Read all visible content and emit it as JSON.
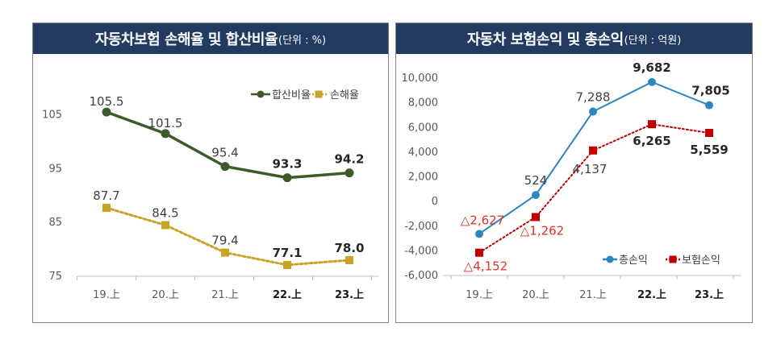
{
  "left_panel": {
    "title": "자동차보험 손해율 및 합산비율",
    "unit": "(단위 : %)"
  },
  "right_panel": {
    "title": "자동차 보험손익 및 총손익",
    "unit": "(단위 : 억원)"
  },
  "chart_data": [
    {
      "type": "line",
      "categories": [
        "19.上",
        "20.上",
        "21.上",
        "22.上",
        "23.上"
      ],
      "bold_categories": [
        "22.上",
        "23.上"
      ],
      "yticks": [
        75,
        85,
        95,
        105
      ],
      "ylim": [
        75,
        110
      ],
      "legend_position": "top-right",
      "series": [
        {
          "name": "합산비율",
          "color": "#3c5a2a",
          "style": "solid",
          "marker": "circle",
          "values": [
            105.5,
            101.5,
            95.4,
            93.3,
            94.2
          ],
          "labels": [
            "105.5",
            "101.5",
            "95.4",
            "93.3",
            "94.2"
          ],
          "label_position": "above"
        },
        {
          "name": "손해율",
          "color": "#c9a227",
          "style": "dotted",
          "marker": "square",
          "values": [
            87.7,
            84.5,
            79.4,
            77.1,
            78.0
          ],
          "labels": [
            "87.7",
            "84.5",
            "79.4",
            "77.1",
            "78.0"
          ],
          "label_position": "above"
        }
      ]
    },
    {
      "type": "line",
      "categories": [
        "19.上",
        "20.上",
        "21.上",
        "22.上",
        "23.上"
      ],
      "bold_categories": [
        "22.上",
        "23.上"
      ],
      "yticks": [
        -6000,
        -4000,
        -2000,
        0,
        2000,
        4000,
        6000,
        8000,
        10000
      ],
      "ytick_labels": [
        "-6,000",
        "-4,000",
        "-2,000",
        "0",
        "2,000",
        "4,000",
        "6,000",
        "8,000",
        "10,000"
      ],
      "ylim": [
        -6000,
        10000
      ],
      "legend_position": "bottom-right",
      "series": [
        {
          "name": "총손익",
          "color": "#2e86c1",
          "style": "solid",
          "marker": "circle",
          "values": [
            -2627,
            524,
            7288,
            9682,
            7805
          ],
          "labels": [
            "△2,627",
            "524",
            "7,288",
            "9,682",
            "7,805"
          ],
          "label_position": "above"
        },
        {
          "name": "보험손익",
          "color": "#c00000",
          "style": "dotted",
          "marker": "square",
          "values": [
            -4152,
            -1262,
            4137,
            6265,
            5559
          ],
          "labels": [
            "△4,152",
            "△1,262",
            "4,137",
            "6,265",
            "5,559"
          ],
          "label_position": "below"
        }
      ]
    }
  ]
}
